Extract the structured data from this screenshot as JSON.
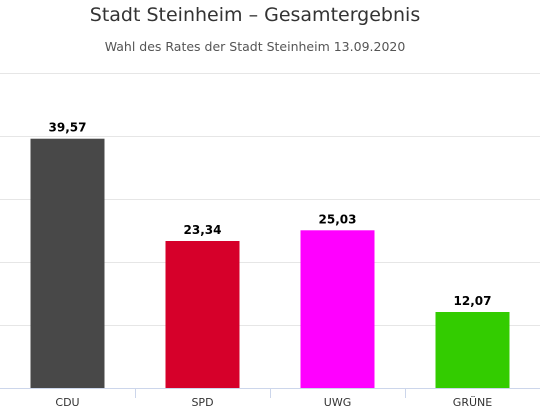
{
  "chart_data": {
    "type": "bar",
    "title": "Stadt Steinheim – Gesamtergebnis",
    "subtitle": "Wahl des Rates der Stadt Steinheim 13.09.2020",
    "categories": [
      "CDU",
      "SPD",
      "UWG",
      "GRÜNE"
    ],
    "values": [
      39.57,
      23.34,
      25.03,
      12.07
    ],
    "data_labels": [
      "39,57",
      "23,34",
      "25,03",
      "12,07"
    ],
    "colors": [
      "#484848",
      "#d6002a",
      "#ff00ff",
      "#33cc00"
    ],
    "xlabel": "",
    "ylabel": "",
    "ylim": [
      0,
      50
    ],
    "grid": true,
    "legend": "none"
  }
}
